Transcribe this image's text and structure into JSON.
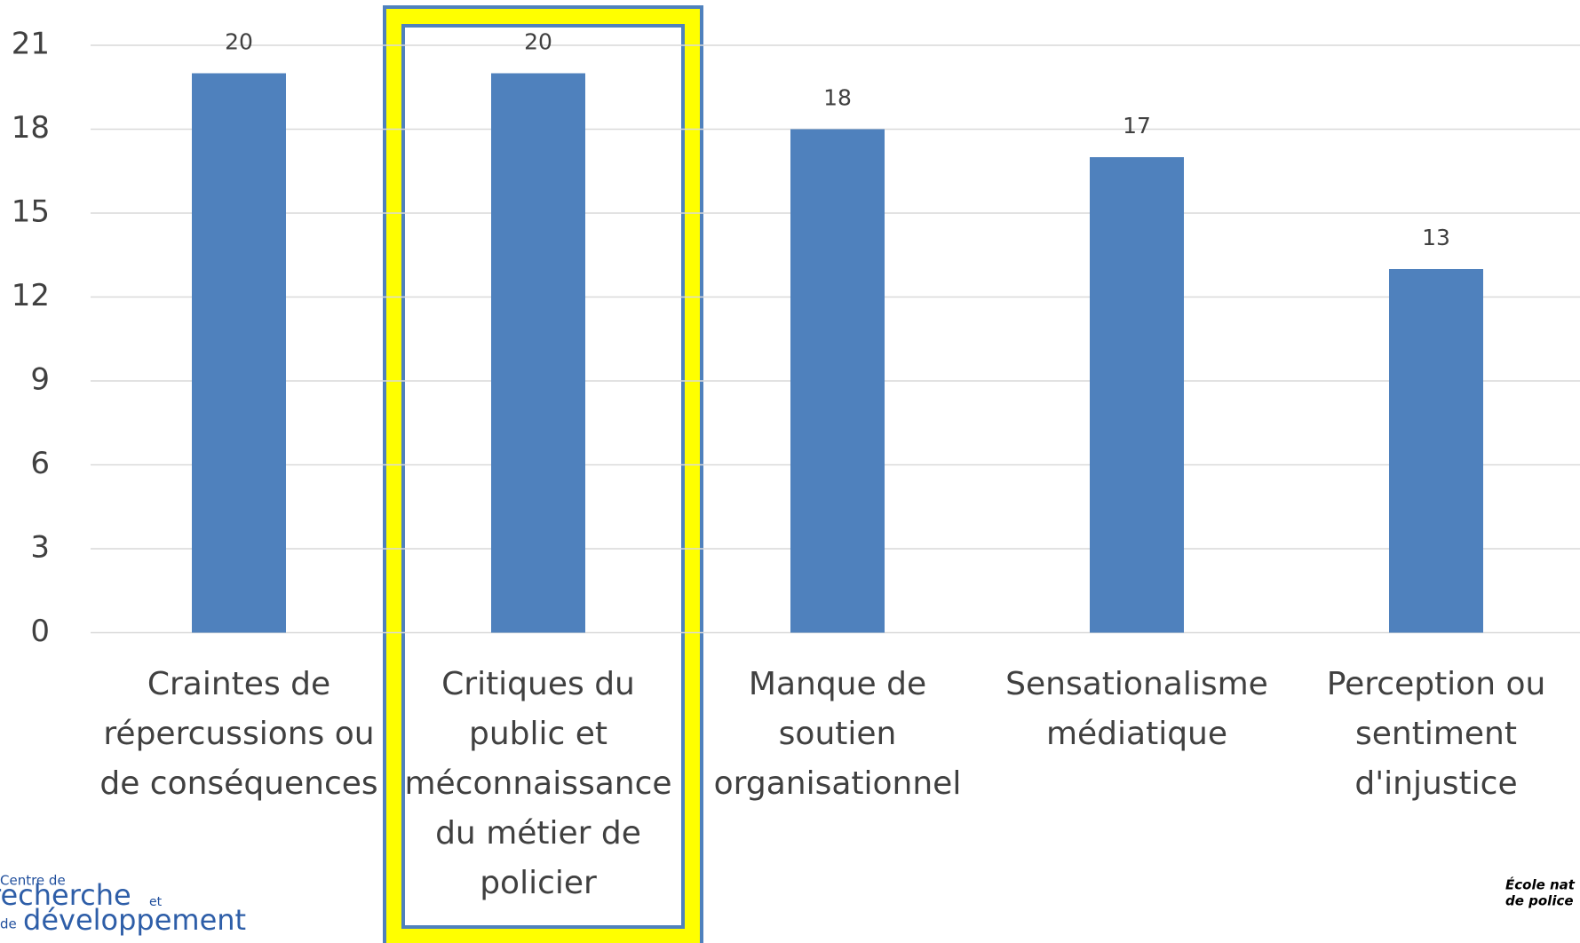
{
  "chart_data": {
    "type": "bar",
    "categories": [
      [
        "Craintes de",
        "répercussions ou",
        "de conséquences"
      ],
      [
        "Critiques du",
        "public et",
        "méconnaissance",
        "du métier de",
        "policier"
      ],
      [
        "Manque de",
        "soutien",
        "organisationnel"
      ],
      [
        "Sensationalisme",
        "médiatique"
      ],
      [
        "Perception ou",
        "sentiment",
        "d'injustice"
      ]
    ],
    "values": [
      20,
      20,
      18,
      17,
      13
    ],
    "color": "#4f81bd",
    "ylim": [
      0,
      21
    ],
    "yticks": [
      0,
      3,
      6,
      9,
      12,
      15,
      18,
      21
    ],
    "grid": true
  },
  "logos": {
    "left": [
      "Centre de",
      "recherche",
      "et",
      "de",
      "développement"
    ],
    "right": [
      "École nat",
      "de police"
    ]
  }
}
